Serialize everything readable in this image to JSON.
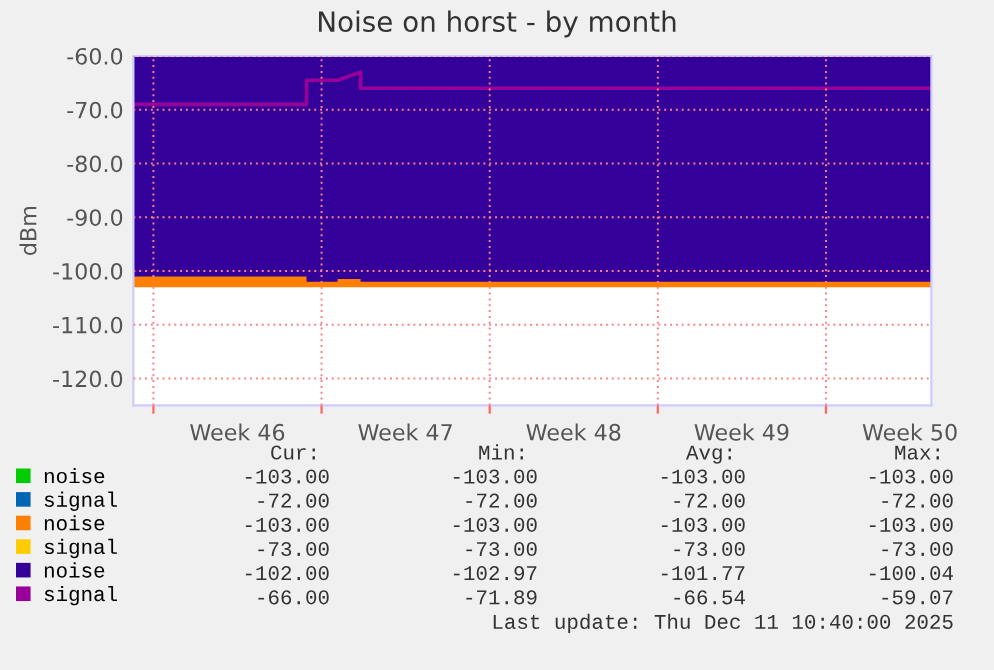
{
  "chart_data": {
    "type": "area",
    "title": "Noise on horst - by month",
    "ylabel": "dBm",
    "xlim": [
      "2025-11-09T04:00",
      "2025-12-12T09:20"
    ],
    "ylim": [
      -125,
      -60
    ],
    "xticks": [
      {
        "value": "2025-11-10",
        "label": null
      },
      {
        "value": "2025-11-13T12:00",
        "label": "Week 46"
      },
      {
        "value": "2025-11-17",
        "label": null
      },
      {
        "value": "2025-11-20T12:00",
        "label": "Week 47"
      },
      {
        "value": "2025-11-24",
        "label": null
      },
      {
        "value": "2025-11-27T12:00",
        "label": "Week 48"
      },
      {
        "value": "2025-12-01",
        "label": null
      },
      {
        "value": "2025-12-04T12:00",
        "label": "Week 49"
      },
      {
        "value": "2025-12-08",
        "label": null
      },
      {
        "value": "2025-12-11T12:00",
        "label": "Week 50"
      }
    ],
    "yticks": [
      {
        "value": -60,
        "label": "-60.0"
      },
      {
        "value": -70,
        "label": "-70.0"
      },
      {
        "value": -80,
        "label": "-80.0"
      },
      {
        "value": -90,
        "label": "-90.0"
      },
      {
        "value": -100,
        "label": "-100.0"
      },
      {
        "value": -110,
        "label": "-110.0"
      },
      {
        "value": -120,
        "label": "-120.0"
      }
    ],
    "grid": true,
    "legend": "bottom",
    "x": [
      "2025-11-09T04:00",
      "2025-11-16T09:00",
      "2025-11-16T09:00",
      "2025-11-17T16:00",
      "2025-11-17T16:00",
      "2025-11-18T15:00",
      "2025-11-18T15:00",
      "2025-12-12T09:00"
    ],
    "series": [
      {
        "name": "noise",
        "color": "#00cc00",
        "values": [
          null,
          null,
          null,
          null,
          null,
          null,
          null,
          null
        ]
      },
      {
        "name": "signal",
        "color": "#0066b3",
        "type": "line",
        "values": [
          null,
          null,
          null,
          null,
          null,
          null,
          null,
          null
        ]
      },
      {
        "name": "noise",
        "color": "#ff8000",
        "values": [
          -103,
          -103,
          -103,
          -103,
          -103,
          -103,
          -103,
          -103
        ]
      },
      {
        "name": "signal",
        "color": "#ffcc00",
        "type": "line",
        "values": [
          null,
          null,
          null,
          null,
          null,
          null,
          null,
          null
        ]
      },
      {
        "name": "noise",
        "color": "#330099",
        "values": [
          -101,
          -101,
          -102,
          -102,
          -101.5,
          -101.5,
          -102,
          -102
        ]
      },
      {
        "name": "signal",
        "color": "#990099",
        "type": "line",
        "values": [
          -69,
          -69,
          -64.5,
          -64.5,
          -64.5,
          -63,
          -66,
          -66
        ]
      }
    ],
    "annotations": [
      "Cur:",
      "Min:",
      "Avg:",
      "Max:",
      "-103.00",
      "-103.00",
      "-103.00",
      "-103.00",
      "-72.00",
      "-72.00",
      "-72.00",
      "-72.00",
      "-103.00",
      "-103.00",
      "-103.00",
      "-103.00",
      "-73.00",
      "-73.00",
      "-73.00",
      "-73.00",
      "-102.00",
      "-102.97",
      "-101.77",
      "-100.04",
      "-66.00",
      "-71.89",
      "-66.54",
      "-59.07",
      "Last update: Thu Dec 11 10:40:00 2025"
    ]
  }
}
